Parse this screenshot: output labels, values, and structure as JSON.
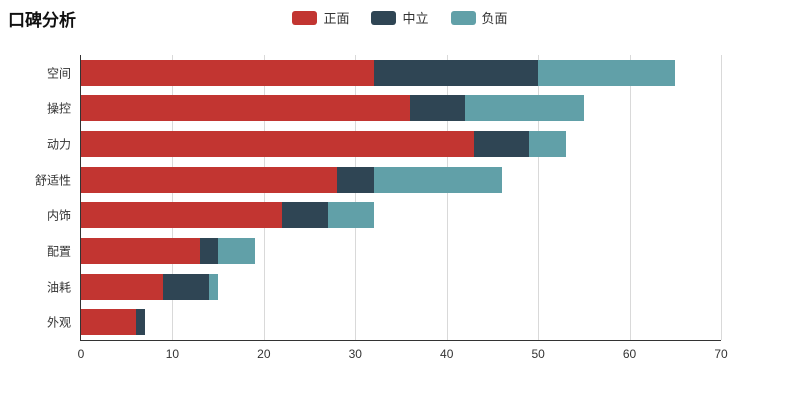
{
  "title": "口碑分析",
  "legend": [
    {
      "label": "正面",
      "color": "#c23531"
    },
    {
      "label": "中立",
      "color": "#2f4554"
    },
    {
      "label": "负面",
      "color": "#61a0a8"
    }
  ],
  "chart_data": {
    "type": "bar",
    "orientation": "horizontal",
    "stacked": true,
    "title": "口碑分析",
    "categories": [
      "空间",
      "操控",
      "动力",
      "舒适性",
      "内饰",
      "配置",
      "油耗",
      "外观"
    ],
    "series": [
      {
        "name": "正面",
        "color": "#c23531",
        "values": [
          32,
          36,
          43,
          28,
          22,
          13,
          9,
          6
        ]
      },
      {
        "name": "中立",
        "color": "#2f4554",
        "values": [
          18,
          6,
          6,
          4,
          5,
          2,
          5,
          1
        ]
      },
      {
        "name": "负面",
        "color": "#61a0a8",
        "values": [
          15,
          13,
          4,
          14,
          5,
          4,
          1,
          0
        ]
      }
    ],
    "xlabel": "",
    "ylabel": "",
    "xlim": [
      0,
      70
    ],
    "xticks": [
      0,
      10,
      20,
      30,
      40,
      50,
      60,
      70
    ],
    "grid": true,
    "legend_position": "top"
  }
}
